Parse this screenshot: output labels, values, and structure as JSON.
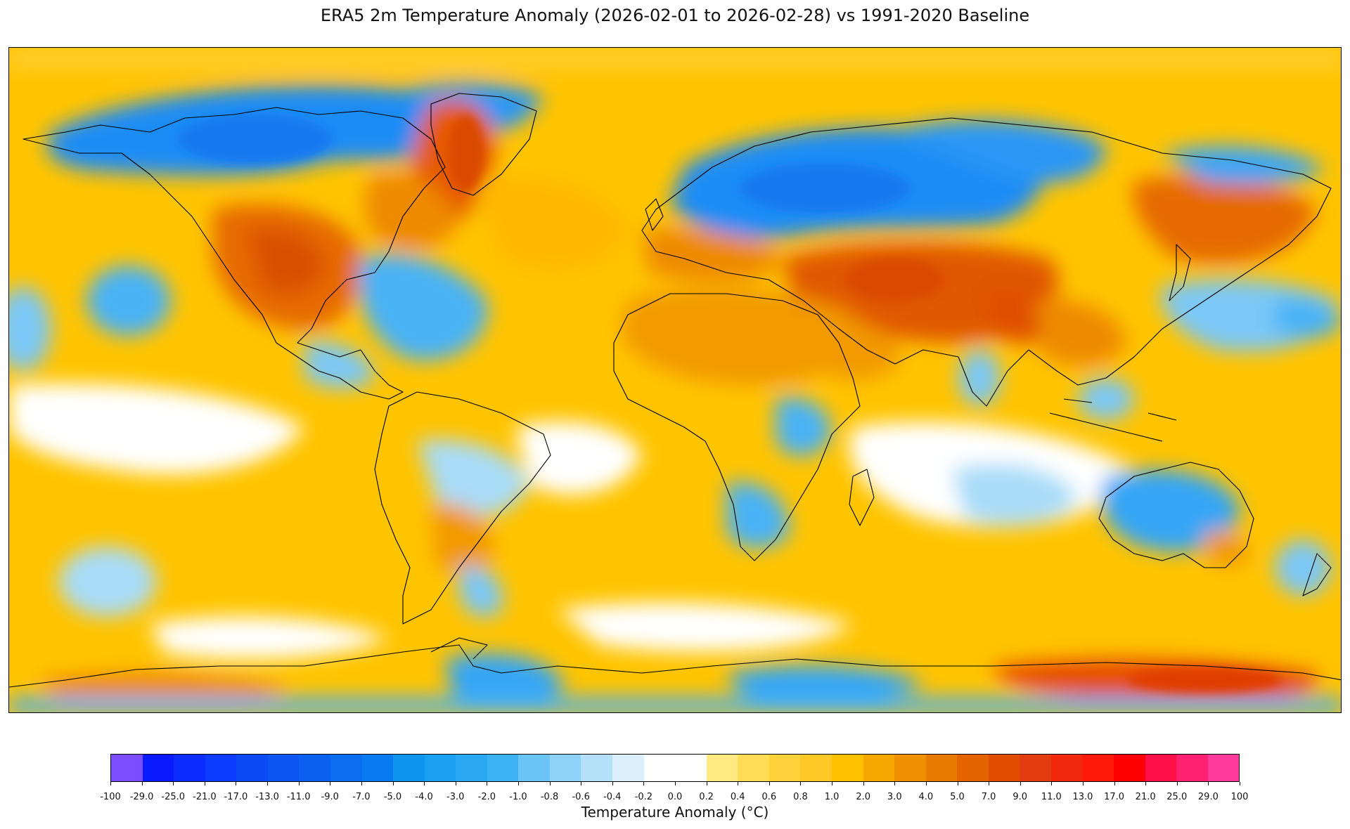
{
  "map": {
    "title": "ERA5 2m Temperature Anomaly (2026-02-01 to 2026-02-28) vs 1991-2020 Baseline",
    "projection": "plate-carree",
    "background_anomaly_color": "#ffc400",
    "outline_color": "#000000",
    "regions": [
      {
        "name": "Canada and Alaska cold",
        "color": "#1e8cf5"
      },
      {
        "name": "Greenland warm",
        "color": "#e65a00"
      },
      {
        "name": "Central United States warm",
        "color": "#e66a00"
      },
      {
        "name": "Northern Europe and Russia cold",
        "color": "#1e8cf5"
      },
      {
        "name": "Central Asia warm",
        "color": "#e05800"
      },
      {
        "name": "North Africa and Middle East warm",
        "color": "#f29a00"
      },
      {
        "name": "Australia cold",
        "color": "#35a6f5"
      },
      {
        "name": "East Antarctica warm",
        "color": "#e65000"
      },
      {
        "name": "West Antarctica cold",
        "color": "#35a6f5"
      },
      {
        "name": "Southern Ocean near zero",
        "color": "#ffffff"
      },
      {
        "name": "Tropical Pacific near zero",
        "color": "#ffffff"
      },
      {
        "name": "Atlantic near zero",
        "color": "#ffffff"
      }
    ]
  },
  "colorbar": {
    "label": "Temperature Anomaly (°C)",
    "ticks": [
      "-100",
      "-29.0",
      "-25.0",
      "-21.0",
      "-17.0",
      "-13.0",
      "-11.0",
      "-9.0",
      "-7.0",
      "-5.0",
      "-4.0",
      "-3.0",
      "-2.0",
      "-1.0",
      "-0.8",
      "-0.6",
      "-0.4",
      "-0.2",
      "0.0",
      "0.2",
      "0.4",
      "0.6",
      "0.8",
      "1.0",
      "2.0",
      "3.0",
      "4.0",
      "5.0",
      "7.0",
      "9.0",
      "11.0",
      "13.0",
      "17.0",
      "21.0",
      "25.0",
      "29.0",
      "100"
    ],
    "colors": [
      "#7a4dff",
      "#0a1aff",
      "#0a2cff",
      "#0b3cff",
      "#0c4af5",
      "#0c55f0",
      "#0c60f0",
      "#0b6ef0",
      "#0a7af0",
      "#0d95f0",
      "#1aa0f0",
      "#2aa8f2",
      "#3db2f2",
      "#6ac4f5",
      "#8ed2f8",
      "#b4e0fa",
      "#dcf0fc",
      "#ffffff",
      "#ffffff",
      "#ffe980",
      "#ffdc55",
      "#ffd13a",
      "#ffc826",
      "#ffc000",
      "#f6a800",
      "#ee9000",
      "#e87a00",
      "#e46400",
      "#e04c00",
      "#e23c10",
      "#f2280c",
      "#ff1a0a",
      "#ff0000",
      "#ff1048",
      "#ff2070",
      "#ff3a9c"
    ]
  }
}
